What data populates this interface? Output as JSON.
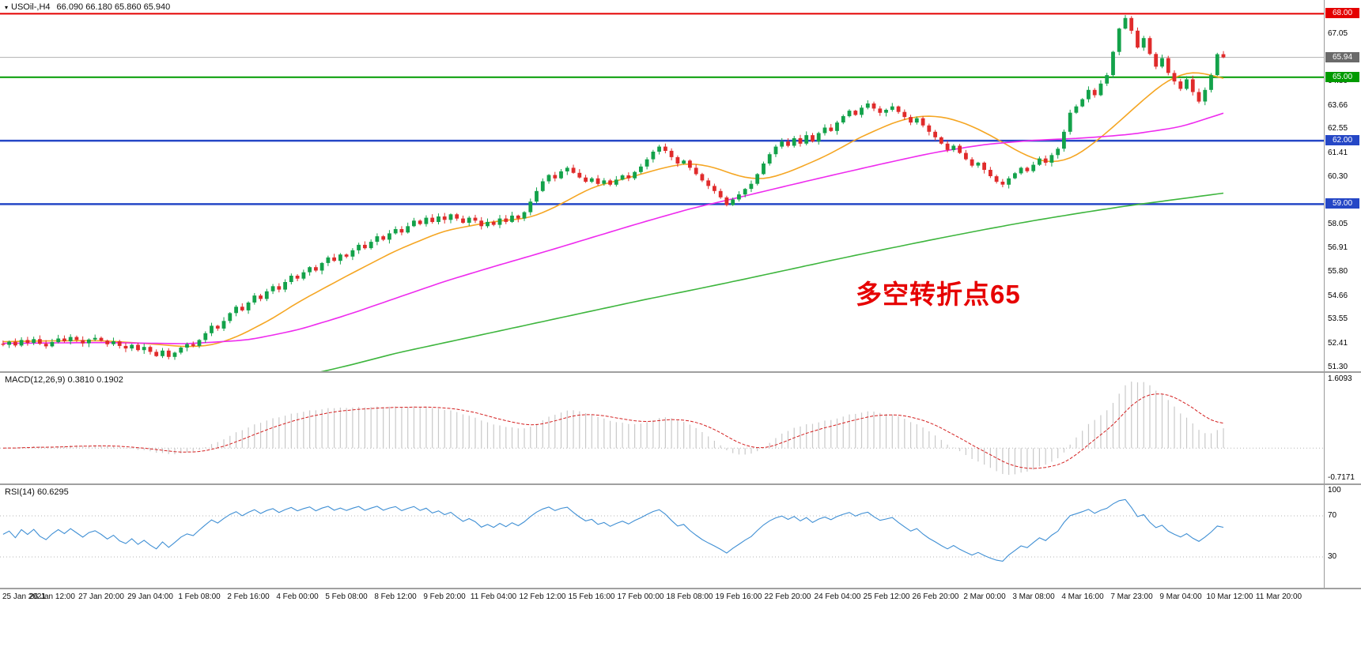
{
  "header": {
    "symbol": "USOil-,H4",
    "ohlc": "66.090 66.180 65.860 65.940"
  },
  "annotation": {
    "text": "多空转折点65",
    "color": "#e60000"
  },
  "chart_data": [
    {
      "type": "candlestick",
      "title": "USOil-,H4",
      "timeframe": "H4",
      "ylim": [
        51.1,
        68.65
      ],
      "up_color": "#13a24a",
      "down_color": "#e02b2b",
      "first_open": 52.4,
      "right_shift_bars": 16,
      "bars_per_label": 8,
      "closes": [
        52.35,
        52.5,
        52.32,
        52.58,
        52.44,
        52.62,
        52.4,
        52.28,
        52.48,
        52.65,
        52.52,
        52.72,
        52.58,
        52.42,
        52.6,
        52.68,
        52.55,
        52.38,
        52.52,
        52.3,
        52.18,
        52.35,
        52.1,
        52.25,
        52.02,
        51.82,
        52.08,
        51.78,
        51.98,
        52.22,
        52.38,
        52.3,
        52.58,
        52.9,
        53.25,
        53.12,
        53.48,
        53.85,
        54.15,
        53.98,
        54.35,
        54.68,
        54.52,
        54.88,
        55.12,
        54.96,
        55.32,
        55.62,
        55.48,
        55.78,
        56.02,
        55.86,
        56.22,
        56.48,
        56.32,
        56.62,
        56.52,
        56.82,
        57.08,
        56.92,
        57.22,
        57.48,
        57.32,
        57.62,
        57.82,
        57.66,
        57.96,
        58.22,
        58.06,
        58.36,
        58.16,
        58.42,
        58.26,
        58.52,
        58.32,
        58.12,
        58.36,
        58.22,
        57.96,
        58.16,
        58.02,
        58.32,
        58.16,
        58.46,
        58.32,
        58.62,
        59.12,
        59.62,
        60.08,
        60.38,
        60.22,
        60.55,
        60.72,
        60.48,
        60.26,
        60.06,
        60.22,
        59.96,
        60.12,
        59.92,
        60.16,
        60.36,
        60.22,
        60.52,
        60.78,
        61.12,
        61.48,
        61.72,
        61.52,
        61.22,
        60.92,
        61.06,
        60.72,
        60.42,
        60.12,
        59.86,
        59.62,
        59.32,
        58.96,
        59.22,
        59.46,
        59.72,
        59.96,
        60.42,
        60.92,
        61.36,
        61.72,
        61.96,
        61.76,
        62.12,
        61.86,
        62.26,
        61.96,
        62.36,
        62.62,
        62.46,
        62.86,
        63.16,
        63.42,
        63.22,
        63.56,
        63.76,
        63.52,
        63.32,
        63.46,
        63.62,
        63.36,
        63.12,
        62.86,
        63.06,
        62.72,
        62.42,
        62.16,
        61.86,
        61.56,
        61.76,
        61.42,
        61.12,
        60.82,
        60.96,
        60.62,
        60.32,
        60.06,
        59.92,
        60.22,
        60.46,
        60.72,
        60.56,
        60.86,
        61.16,
        60.96,
        61.32,
        61.62,
        62.42,
        63.32,
        63.62,
        63.96,
        64.4,
        64.15,
        64.7,
        65.1,
        66.2,
        67.3,
        67.8,
        67.2,
        66.4,
        66.85,
        66.1,
        65.5,
        65.9,
        65.2,
        64.8,
        64.45,
        64.9,
        64.3,
        63.85,
        64.4,
        65.1,
        66.09,
        65.94
      ],
      "y_ticks": [
        "67.05",
        "64.80",
        "63.66",
        "62.55",
        "61.41",
        "60.30",
        "58.05",
        "56.91",
        "55.80",
        "54.66",
        "53.55",
        "52.41",
        "51.30"
      ],
      "x_tick_labels": [
        "25 Jan 2021",
        "26 Jan 12:00",
        "27 Jan 20:00",
        "29 Jan 04:00",
        "1 Feb 08:00",
        "2 Feb 16:00",
        "4 Feb 00:00",
        "5 Feb 08:00",
        "8 Feb 12:00",
        "9 Feb 20:00",
        "11 Feb 04:00",
        "12 Feb 12:00",
        "15 Feb 16:00",
        "17 Feb 00:00",
        "18 Feb 08:00",
        "19 Feb 16:00",
        "22 Feb 20:00",
        "24 Feb 04:00",
        "25 Feb 12:00",
        "26 Feb 20:00",
        "2 Mar 00:00",
        "3 Mar 08:00",
        "4 Mar 16:00",
        "7 Mar 23:00",
        "9 Mar 04:00",
        "10 Mar 12:00",
        "11 Mar 20:00"
      ],
      "price_lines": [
        {
          "value": 68.0,
          "label": "68.00",
          "color": "#e40000",
          "width": 2
        },
        {
          "value": 65.0,
          "label": "65.00",
          "color": "#009b00",
          "width": 2
        },
        {
          "value": 62.0,
          "label": "62.00",
          "color": "#2547c6",
          "width": 2.5
        },
        {
          "value": 59.0,
          "label": "59.00",
          "color": "#2547c6",
          "width": 2.5
        }
      ],
      "current_price": {
        "value": 65.94,
        "label": "65.94",
        "line_color": "#b0b0b0",
        "badge_color": "#6a6a6a"
      },
      "moving_averages": [
        {
          "name": "ma-fast",
          "color": "#f5a623",
          "anchors": [
            [
              0,
              52.5
            ],
            [
              8,
              52.54
            ],
            [
              16,
              52.55
            ],
            [
              24,
              52.4
            ],
            [
              30,
              52.25
            ],
            [
              34,
              52.32
            ],
            [
              38,
              52.7
            ],
            [
              44,
              53.6
            ],
            [
              48,
              54.35
            ],
            [
              56,
              55.6
            ],
            [
              64,
              56.8
            ],
            [
              72,
              57.75
            ],
            [
              80,
              58.18
            ],
            [
              86,
              58.35
            ],
            [
              90,
              58.85
            ],
            [
              96,
              59.8
            ],
            [
              102,
              60.25
            ],
            [
              108,
              60.75
            ],
            [
              112,
              60.95
            ],
            [
              116,
              60.75
            ],
            [
              120,
              60.3
            ],
            [
              124,
              60.15
            ],
            [
              128,
              60.5
            ],
            [
              134,
              61.25
            ],
            [
              140,
              62.2
            ],
            [
              146,
              62.95
            ],
            [
              150,
              63.2
            ],
            [
              154,
              63.1
            ],
            [
              158,
              62.7
            ],
            [
              162,
              62.1
            ],
            [
              166,
              61.4
            ],
            [
              170,
              60.95
            ],
            [
              174,
              61.1
            ],
            [
              178,
              61.9
            ],
            [
              182,
              62.9
            ],
            [
              186,
              63.95
            ],
            [
              190,
              64.9
            ],
            [
              194,
              65.3
            ],
            [
              199,
              64.95
            ]
          ]
        },
        {
          "name": "ma-medium",
          "color": "#ee2bee",
          "anchors": [
            [
              0,
              52.42
            ],
            [
              16,
              52.46
            ],
            [
              30,
              52.4
            ],
            [
              40,
              52.58
            ],
            [
              48,
              53.05
            ],
            [
              56,
              53.75
            ],
            [
              64,
              54.55
            ],
            [
              72,
              55.35
            ],
            [
              80,
              56.05
            ],
            [
              88,
              56.72
            ],
            [
              96,
              57.42
            ],
            [
              104,
              58.12
            ],
            [
              112,
              58.78
            ],
            [
              120,
              59.32
            ],
            [
              128,
              59.88
            ],
            [
              136,
              60.42
            ],
            [
              144,
              60.95
            ],
            [
              152,
              61.45
            ],
            [
              160,
              61.82
            ],
            [
              168,
              62.02
            ],
            [
              176,
              62.12
            ],
            [
              184,
              62.3
            ],
            [
              192,
              62.65
            ],
            [
              199,
              63.3
            ]
          ]
        },
        {
          "name": "ma-slow",
          "color": "#3db53d",
          "anchors": [
            [
              50,
              50.95
            ],
            [
              56,
              51.35
            ],
            [
              64,
              51.95
            ],
            [
              72,
              52.45
            ],
            [
              80,
              52.95
            ],
            [
              88,
              53.45
            ],
            [
              96,
              53.95
            ],
            [
              104,
              54.45
            ],
            [
              112,
              54.92
            ],
            [
              120,
              55.4
            ],
            [
              128,
              55.9
            ],
            [
              136,
              56.4
            ],
            [
              144,
              56.88
            ],
            [
              152,
              57.35
            ],
            [
              160,
              57.8
            ],
            [
              168,
              58.22
            ],
            [
              176,
              58.6
            ],
            [
              184,
              58.95
            ],
            [
              192,
              59.25
            ],
            [
              199,
              59.52
            ]
          ]
        }
      ]
    },
    {
      "type": "macd",
      "label": "MACD(12,26,9) 0.3810 0.1902",
      "params": [
        12,
        26,
        9
      ],
      "macd_value": "0.3810",
      "signal_value": "0.1902",
      "ylim": [
        -0.78,
        1.66
      ],
      "scale_max_label": "1.6093",
      "scale_min_label": "-0.7171",
      "histogram_color": "#c9c9c9",
      "signal_color": "#d42020",
      "zero_line_color": "#b5b5b5"
    },
    {
      "type": "rsi",
      "label": "RSI(14) 60.6295",
      "period": 14,
      "current_value": "60.6295",
      "ylim": [
        0,
        100
      ],
      "levels": [
        70,
        30
      ],
      "scale_labels": [
        "100",
        "70",
        "30"
      ],
      "line_color": "#3f8fd4",
      "level_line_color": "#b5b5b5"
    }
  ]
}
